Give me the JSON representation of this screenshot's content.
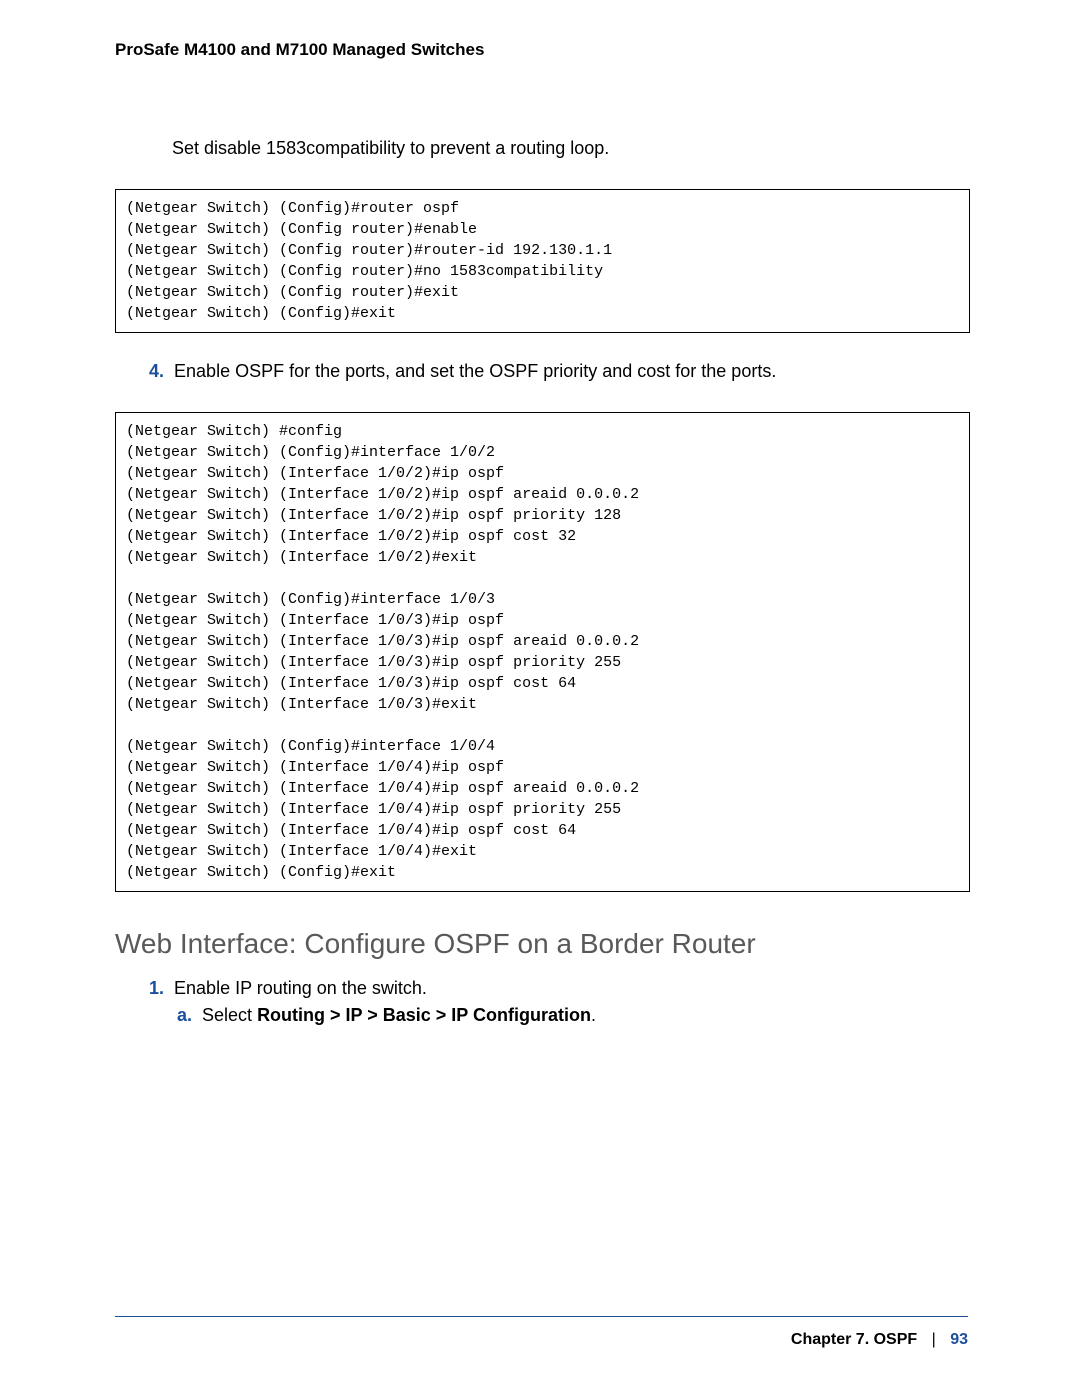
{
  "header": {
    "running_title": "ProSafe M4100 and M7100 Managed Switches"
  },
  "body": {
    "intro": "Set disable 1583compatibility to prevent a routing loop.",
    "code1": "(Netgear Switch) (Config)#router ospf\n(Netgear Switch) (Config router)#enable\n(Netgear Switch) (Config router)#router-id 192.130.1.1\n(Netgear Switch) (Config router)#no 1583compatibility\n(Netgear Switch) (Config router)#exit\n(Netgear Switch) (Config)#exit",
    "step4_num": "4.",
    "step4_text": "Enable OSPF for the ports, and set the OSPF priority and cost for the ports.",
    "code2": "(Netgear Switch) #config\n(Netgear Switch) (Config)#interface 1/0/2\n(Netgear Switch) (Interface 1/0/2)#ip ospf\n(Netgear Switch) (Interface 1/0/2)#ip ospf areaid 0.0.0.2\n(Netgear Switch) (Interface 1/0/2)#ip ospf priority 128\n(Netgear Switch) (Interface 1/0/2)#ip ospf cost 32\n(Netgear Switch) (Interface 1/0/2)#exit\n\n(Netgear Switch) (Config)#interface 1/0/3\n(Netgear Switch) (Interface 1/0/3)#ip ospf\n(Netgear Switch) (Interface 1/0/3)#ip ospf areaid 0.0.0.2\n(Netgear Switch) (Interface 1/0/3)#ip ospf priority 255\n(Netgear Switch) (Interface 1/0/3)#ip ospf cost 64\n(Netgear Switch) (Interface 1/0/3)#exit\n\n(Netgear Switch) (Config)#interface 1/0/4\n(Netgear Switch) (Interface 1/0/4)#ip ospf\n(Netgear Switch) (Interface 1/0/4)#ip ospf areaid 0.0.0.2\n(Netgear Switch) (Interface 1/0/4)#ip ospf priority 255\n(Netgear Switch) (Interface 1/0/4)#ip ospf cost 64\n(Netgear Switch) (Interface 1/0/4)#exit\n(Netgear Switch) (Config)#exit",
    "heading": "Web Interface: Configure OSPF on a Border Router",
    "sub1_num": "1.",
    "sub1_text": "Enable IP routing on the switch.",
    "sub1a_num": "a.",
    "sub1a_prefix": "Select ",
    "sub1a_bold": "Routing > IP > Basic > IP Configuration",
    "sub1a_suffix": "."
  },
  "footer": {
    "chapter": "Chapter 7.  OSPF",
    "sep": "|",
    "page": "93"
  },
  "colors": {
    "accent_blue": "#1b4f9c",
    "heading_gray": "#595959",
    "text_black": "#000000",
    "background": "#ffffff"
  }
}
